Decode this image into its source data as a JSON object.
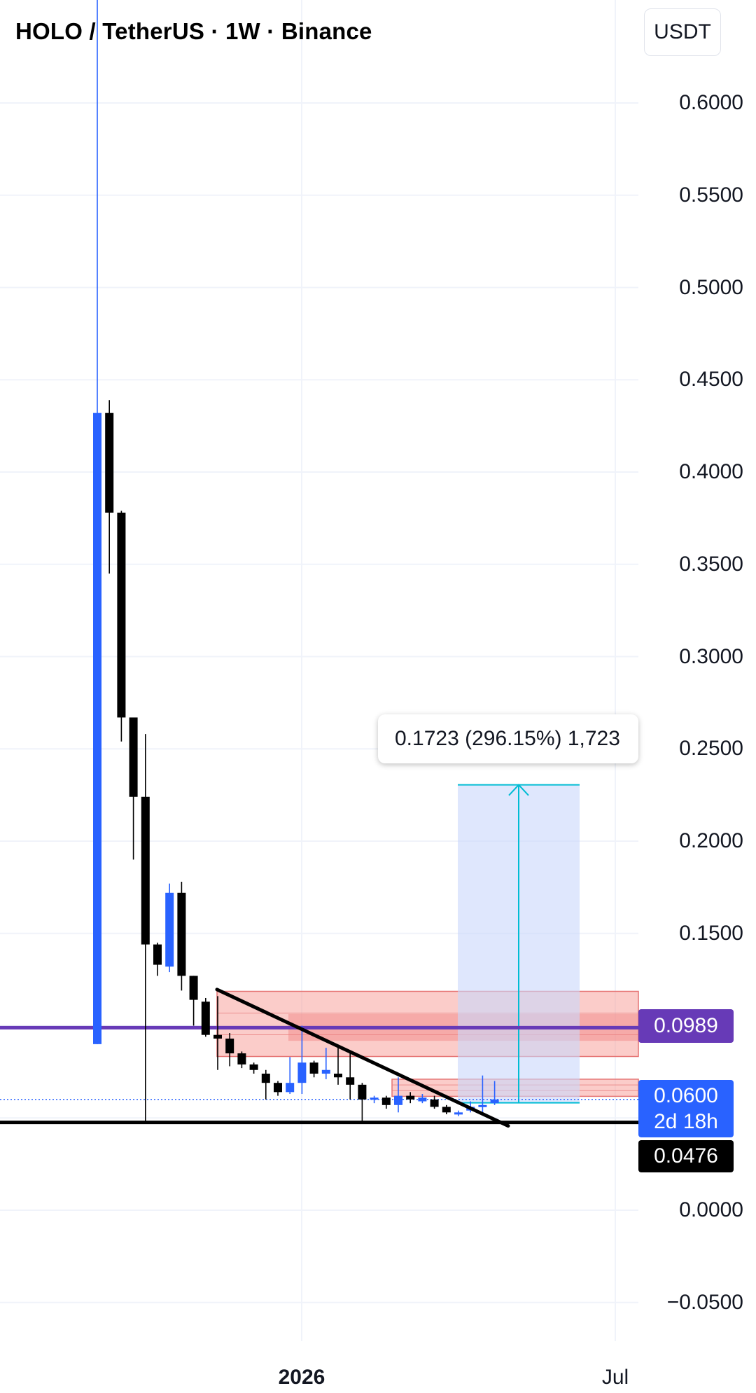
{
  "header": {
    "title": "HOLO / TetherUS · 1W · Binance",
    "currency_label": "USDT"
  },
  "axes": {
    "y_ticks": [
      "0.6000",
      "0.5500",
      "0.5000",
      "0.4500",
      "0.4000",
      "0.3500",
      "0.3000",
      "0.2500",
      "0.2000",
      "0.1500",
      "0.0000",
      "−0.0500"
    ],
    "x_labels": [
      "2026",
      "Jul"
    ]
  },
  "price_tags": {
    "resistance": "0.0989",
    "last_price": "0.0600",
    "countdown": "2d 18h",
    "support": "0.0476"
  },
  "measure": {
    "label": "0.1723 (296.15%) 1,723"
  },
  "colors": {
    "up": "#2962ff",
    "down": "#000000",
    "resistance_line": "#673ab7",
    "support_line": "#000000",
    "zone_fill": "#f7a39c",
    "measure_fill": "#c9d7fb",
    "measure_line": "#00bcd4"
  },
  "chart_data": {
    "type": "candlestick",
    "timeframe": "1W",
    "symbol": "HOLO / TetherUS",
    "exchange": "Binance",
    "ylim": [
      -0.065,
      0.665
    ],
    "y_axis_unit": "USDT",
    "candles": [
      {
        "o": 0.09,
        "h": 0.67,
        "l": 0.09,
        "c": 0.432
      },
      {
        "o": 0.432,
        "h": 0.439,
        "l": 0.345,
        "c": 0.378
      },
      {
        "o": 0.378,
        "h": 0.379,
        "l": 0.254,
        "c": 0.267
      },
      {
        "o": 0.267,
        "h": 0.267,
        "l": 0.19,
        "c": 0.224
      },
      {
        "o": 0.224,
        "h": 0.258,
        "l": 0.047,
        "c": 0.144
      },
      {
        "o": 0.144,
        "h": 0.145,
        "l": 0.127,
        "c": 0.133
      },
      {
        "o": 0.132,
        "h": 0.177,
        "l": 0.129,
        "c": 0.172
      },
      {
        "o": 0.172,
        "h": 0.178,
        "l": 0.119,
        "c": 0.127
      },
      {
        "o": 0.127,
        "h": 0.127,
        "l": 0.1,
        "c": 0.114
      },
      {
        "o": 0.113,
        "h": 0.115,
        "l": 0.094,
        "c": 0.095
      },
      {
        "o": 0.095,
        "h": 0.116,
        "l": 0.076,
        "c": 0.093
      },
      {
        "o": 0.093,
        "h": 0.096,
        "l": 0.078,
        "c": 0.085
      },
      {
        "o": 0.085,
        "h": 0.086,
        "l": 0.077,
        "c": 0.079
      },
      {
        "o": 0.079,
        "h": 0.08,
        "l": 0.074,
        "c": 0.076
      },
      {
        "o": 0.074,
        "h": 0.076,
        "l": 0.06,
        "c": 0.069
      },
      {
        "o": 0.069,
        "h": 0.07,
        "l": 0.062,
        "c": 0.064
      },
      {
        "o": 0.064,
        "h": 0.083,
        "l": 0.063,
        "c": 0.069
      },
      {
        "o": 0.069,
        "h": 0.1,
        "l": 0.063,
        "c": 0.08
      },
      {
        "o": 0.08,
        "h": 0.081,
        "l": 0.072,
        "c": 0.074
      },
      {
        "o": 0.074,
        "h": 0.088,
        "l": 0.071,
        "c": 0.076
      },
      {
        "o": 0.074,
        "h": 0.088,
        "l": 0.068,
        "c": 0.072
      },
      {
        "o": 0.072,
        "h": 0.086,
        "l": 0.06,
        "c": 0.068
      },
      {
        "o": 0.068,
        "h": 0.069,
        "l": 0.048,
        "c": 0.06
      },
      {
        "o": 0.06,
        "h": 0.062,
        "l": 0.058,
        "c": 0.061
      },
      {
        "o": 0.061,
        "h": 0.062,
        "l": 0.055,
        "c": 0.057
      },
      {
        "o": 0.057,
        "h": 0.072,
        "l": 0.053,
        "c": 0.062
      },
      {
        "o": 0.062,
        "h": 0.064,
        "l": 0.058,
        "c": 0.06
      },
      {
        "o": 0.059,
        "h": 0.063,
        "l": 0.058,
        "c": 0.061
      },
      {
        "o": 0.06,
        "h": 0.062,
        "l": 0.055,
        "c": 0.056
      },
      {
        "o": 0.056,
        "h": 0.057,
        "l": 0.052,
        "c": 0.053
      },
      {
        "o": 0.052,
        "h": 0.054,
        "l": 0.051,
        "c": 0.053
      },
      {
        "o": 0.054,
        "h": 0.059,
        "l": 0.053,
        "c": 0.056
      },
      {
        "o": 0.056,
        "h": 0.073,
        "l": 0.053,
        "c": 0.057
      },
      {
        "o": 0.058,
        "h": 0.07,
        "l": 0.057,
        "c": 0.06
      }
    ],
    "horizontal_lines": [
      {
        "name": "resistance",
        "value": 0.0989
      },
      {
        "name": "support",
        "value": 0.0476
      },
      {
        "name": "last-price",
        "value": 0.06
      }
    ],
    "zones": [
      {
        "from": 0.0833,
        "to": 0.1186
      },
      {
        "from": 0.0617,
        "to": 0.071
      }
    ],
    "trendline": {
      "from": 0.1196,
      "to": 0.0457
    },
    "measure": {
      "from": 0.0582,
      "to": 0.2305,
      "change": 0.1723,
      "change_pct": 296.15
    }
  }
}
